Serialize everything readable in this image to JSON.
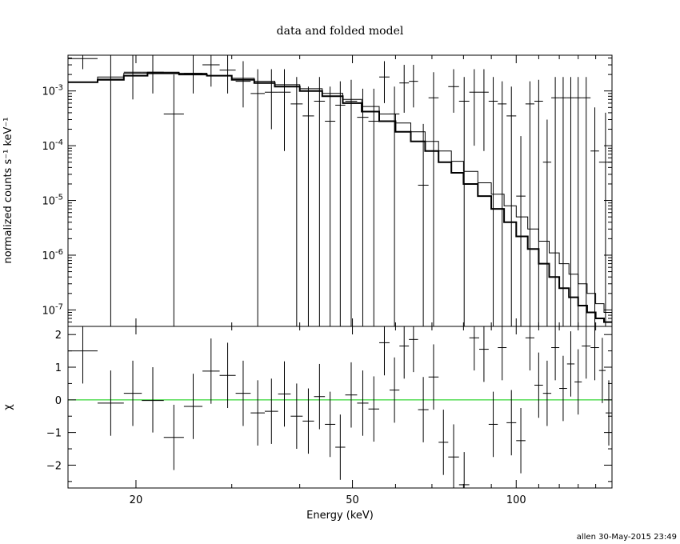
{
  "chart_data": [
    {
      "type": "line",
      "panel": "top",
      "title": "data and folded model",
      "xlabel": "",
      "ylabel": "normalized counts s⁻¹ keV⁻¹",
      "xscale": "log",
      "yscale": "log",
      "xlim": [
        15,
        150
      ],
      "ylim": [
        5e-08,
        0.0045
      ],
      "yticks": [
        {
          "value": 1e-07,
          "base": "10",
          "exp": "-7"
        },
        {
          "value": 1e-06,
          "base": "10",
          "exp": "-6"
        },
        {
          "value": 1e-05,
          "base": "10",
          "exp": "-5"
        },
        {
          "value": 0.0001,
          "base": "10",
          "exp": "-4"
        },
        {
          "value": 0.001,
          "base": "10",
          "exp": "-3"
        }
      ],
      "data_points": [
        {
          "xlo": 15.0,
          "xhi": 17.0,
          "y": 0.0039,
          "ylo": 0.0025,
          "yhi": 0.0045
        },
        {
          "xlo": 17.0,
          "xhi": 19.0,
          "y": 0.00165,
          "ylo": 5e-08,
          "yhi": 0.0045
        },
        {
          "xlo": 19.0,
          "xhi": 20.5,
          "y": 0.0022,
          "ylo": 0.0007,
          "yhi": 0.0045
        },
        {
          "xlo": 20.5,
          "xhi": 22.5,
          "y": 0.0022,
          "ylo": 0.0009,
          "yhi": 0.0045
        },
        {
          "xlo": 22.5,
          "xhi": 24.5,
          "y": 0.00038,
          "ylo": 5e-08,
          "yhi": 0.002
        },
        {
          "xlo": 24.5,
          "xhi": 26.5,
          "y": 0.0021,
          "ylo": 0.0009,
          "yhi": 0.0045
        },
        {
          "xlo": 26.5,
          "xhi": 28.5,
          "y": 0.003,
          "ylo": 0.0012,
          "yhi": 0.0045
        },
        {
          "xlo": 28.5,
          "xhi": 30.5,
          "y": 0.0024,
          "ylo": 0.0009,
          "yhi": 0.0045
        },
        {
          "xlo": 30.5,
          "xhi": 32.5,
          "y": 0.0015,
          "ylo": 0.0005,
          "yhi": 0.0035
        },
        {
          "xlo": 32.5,
          "xhi": 34.5,
          "y": 0.0009,
          "ylo": 5e-08,
          "yhi": 0.0025
        },
        {
          "xlo": 34.5,
          "xhi": 36.5,
          "y": 0.00095,
          "ylo": 0.0002,
          "yhi": 0.0025
        },
        {
          "xlo": 36.5,
          "xhi": 38.5,
          "y": 0.00095,
          "ylo": 8e-05,
          "yhi": 0.0025
        },
        {
          "xlo": 38.5,
          "xhi": 40.5,
          "y": 0.00058,
          "ylo": 5e-08,
          "yhi": 0.0018
        },
        {
          "xlo": 40.5,
          "xhi": 42.5,
          "y": 0.00035,
          "ylo": 5e-08,
          "yhi": 0.0012
        },
        {
          "xlo": 42.5,
          "xhi": 44.5,
          "y": 0.00065,
          "ylo": 5e-08,
          "yhi": 0.0018
        },
        {
          "xlo": 44.5,
          "xhi": 46.5,
          "y": 0.00028,
          "ylo": 5e-08,
          "yhi": 0.0012
        },
        {
          "xlo": 46.5,
          "xhi": 48.5,
          "y": 0.00055,
          "ylo": 5e-08,
          "yhi": 0.0015
        },
        {
          "xlo": 48.5,
          "xhi": 51.0,
          "y": 0.00065,
          "ylo": 5e-08,
          "yhi": 0.0016
        },
        {
          "xlo": 51.0,
          "xhi": 53.5,
          "y": 0.00033,
          "ylo": 5e-08,
          "yhi": 0.0011
        },
        {
          "xlo": 53.5,
          "xhi": 56.0,
          "y": 0.00028,
          "ylo": 5e-08,
          "yhi": 0.0011
        },
        {
          "xlo": 56.0,
          "xhi": 58.5,
          "y": 0.0018,
          "ylo": 0.0006,
          "yhi": 0.0035
        },
        {
          "xlo": 58.5,
          "xhi": 61.0,
          "y": 0.00038,
          "ylo": 5e-08,
          "yhi": 0.0012
        },
        {
          "xlo": 61.0,
          "xhi": 63.5,
          "y": 0.0014,
          "ylo": 0.0004,
          "yhi": 0.003
        },
        {
          "xlo": 63.5,
          "xhi": 66.0,
          "y": 0.0015,
          "ylo": 0.0005,
          "yhi": 0.003
        },
        {
          "xlo": 66.0,
          "xhi": 69.0,
          "y": 1.9e-05,
          "ylo": 5e-08,
          "yhi": 0.00025
        },
        {
          "xlo": 69.0,
          "xhi": 72.0,
          "y": 0.00075,
          "ylo": 5e-08,
          "yhi": 0.0022
        },
        {
          "xlo": 75.0,
          "xhi": 78.5,
          "y": 0.0012,
          "ylo": 0.0004,
          "yhi": 0.0025
        },
        {
          "xlo": 78.5,
          "xhi": 82.0,
          "y": 0.00065,
          "ylo": 5e-08,
          "yhi": 0.0018
        },
        {
          "xlo": 82.0,
          "xhi": 85.5,
          "y": 0.00095,
          "ylo": 0.0001,
          "yhi": 0.0025
        },
        {
          "xlo": 85.5,
          "xhi": 89.0,
          "y": 0.00095,
          "ylo": 8e-05,
          "yhi": 0.0025
        },
        {
          "xlo": 89.0,
          "xhi": 92.5,
          "y": 0.00065,
          "ylo": 5e-08,
          "yhi": 0.0018
        },
        {
          "xlo": 92.5,
          "xhi": 96.0,
          "y": 0.00058,
          "ylo": 5e-08,
          "yhi": 0.0015
        },
        {
          "xlo": 96.0,
          "xhi": 100.0,
          "y": 0.00035,
          "ylo": 5e-08,
          "yhi": 0.0012
        },
        {
          "xlo": 100.0,
          "xhi": 104.0,
          "y": 1.2e-05,
          "ylo": 5e-08,
          "yhi": 0.00015
        },
        {
          "xlo": 104.0,
          "xhi": 108.0,
          "y": 0.00058,
          "ylo": 5e-08,
          "yhi": 0.0015
        },
        {
          "xlo": 108.0,
          "xhi": 112.0,
          "y": 0.00065,
          "ylo": 5e-08,
          "yhi": 0.0016
        },
        {
          "xlo": 112.0,
          "xhi": 116.0,
          "y": 5e-05,
          "ylo": 5e-08,
          "yhi": 0.0003
        },
        {
          "xlo": 116.0,
          "xhi": 120.0,
          "y": 0.00075,
          "ylo": 5e-08,
          "yhi": 0.0018
        },
        {
          "xlo": 120.0,
          "xhi": 124.0,
          "y": 0.00075,
          "ylo": 5e-08,
          "yhi": 0.0018
        },
        {
          "xlo": 124.0,
          "xhi": 128.0,
          "y": 0.00075,
          "ylo": 5e-08,
          "yhi": 0.0018
        },
        {
          "xlo": 128.0,
          "xhi": 132.0,
          "y": 0.00075,
          "ylo": 5e-08,
          "yhi": 0.0018
        },
        {
          "xlo": 132.0,
          "xhi": 137.0,
          "y": 0.00075,
          "ylo": 5e-08,
          "yhi": 0.0018
        },
        {
          "xlo": 137.0,
          "xhi": 142.0,
          "y": 8e-05,
          "ylo": 5e-08,
          "yhi": 0.0005
        },
        {
          "xlo": 142.0,
          "xhi": 150.0,
          "y": 5e-05,
          "ylo": 5e-08,
          "yhi": 0.0004
        }
      ],
      "model_thick": [
        [
          15.0,
          0.00145
        ],
        [
          17.0,
          0.0016
        ],
        [
          19.0,
          0.0019
        ],
        [
          21.0,
          0.0021
        ],
        [
          24.0,
          0.002
        ],
        [
          27.0,
          0.0019
        ],
        [
          30.0,
          0.0016
        ],
        [
          33.0,
          0.0014
        ],
        [
          36.0,
          0.0012
        ],
        [
          40.0,
          0.001
        ],
        [
          44.0,
          0.0008
        ],
        [
          48.0,
          0.0006
        ],
        [
          52.0,
          0.00042
        ],
        [
          56.0,
          0.00028
        ],
        [
          60.0,
          0.00018
        ],
        [
          64.0,
          0.00012
        ],
        [
          68.0,
          8e-05
        ],
        [
          72.0,
          5e-05
        ],
        [
          76.0,
          3.2e-05
        ],
        [
          80.0,
          2e-05
        ],
        [
          85.0,
          1.2e-05
        ],
        [
          90.0,
          7e-06
        ],
        [
          95.0,
          4e-06
        ],
        [
          100.0,
          2.2e-06
        ],
        [
          105.0,
          1.3e-06
        ],
        [
          110.0,
          7e-07
        ],
        [
          115.0,
          4e-07
        ],
        [
          120.0,
          2.5e-07
        ],
        [
          125.0,
          1.7e-07
        ],
        [
          130.0,
          1.2e-07
        ],
        [
          135.0,
          9e-08
        ],
        [
          140.0,
          7e-08
        ],
        [
          145.0,
          6e-08
        ],
        [
          150.0,
          5e-08
        ]
      ],
      "model_thin": [
        [
          15.0,
          0.00145
        ],
        [
          17.0,
          0.0018
        ],
        [
          19.0,
          0.0021
        ],
        [
          21.0,
          0.0022
        ],
        [
          24.0,
          0.0021
        ],
        [
          27.0,
          0.0019
        ],
        [
          30.0,
          0.0017
        ],
        [
          33.0,
          0.0015
        ],
        [
          36.0,
          0.0013
        ],
        [
          40.0,
          0.0011
        ],
        [
          44.0,
          0.0009
        ],
        [
          48.0,
          0.0007
        ],
        [
          52.0,
          0.00052
        ],
        [
          56.0,
          0.00038
        ],
        [
          60.0,
          0.00026
        ],
        [
          64.0,
          0.00018
        ],
        [
          68.0,
          0.00012
        ],
        [
          72.0,
          8e-05
        ],
        [
          76.0,
          5.2e-05
        ],
        [
          80.0,
          3.4e-05
        ],
        [
          85.0,
          2.1e-05
        ],
        [
          90.0,
          1.3e-05
        ],
        [
          95.0,
          8e-06
        ],
        [
          100.0,
          5e-06
        ],
        [
          105.0,
          3e-06
        ],
        [
          110.0,
          1.8e-06
        ],
        [
          115.0,
          1.1e-06
        ],
        [
          120.0,
          7e-07
        ],
        [
          125.0,
          4.5e-07
        ],
        [
          130.0,
          3e-07
        ],
        [
          135.0,
          2e-07
        ],
        [
          140.0,
          1.3e-07
        ],
        [
          145.0,
          9e-08
        ],
        [
          150.0,
          6e-08
        ]
      ]
    },
    {
      "type": "scatter",
      "panel": "bottom",
      "xlabel": "Energy (keV)",
      "ylabel": "χ",
      "xscale": "log",
      "xlim": [
        15,
        150
      ],
      "ylim": [
        -2.7,
        2.25
      ],
      "xticks": [
        20,
        50,
        100
      ],
      "xtick_labels": [
        "20",
        "50",
        "100"
      ],
      "yticks": [
        -2,
        -1,
        0,
        1,
        2
      ],
      "ytick_labels": [
        "−2",
        "−1",
        "0",
        "1",
        "2"
      ],
      "zero_line_color": "#00cc00",
      "points": [
        {
          "xlo": 15.0,
          "xhi": 17.0,
          "y": 1.5,
          "ylo": 0.5,
          "yhi": 2.5
        },
        {
          "xlo": 17.0,
          "xhi": 19.0,
          "y": -0.1,
          "ylo": -1.1,
          "yhi": 0.9
        },
        {
          "xlo": 19.0,
          "xhi": 20.5,
          "y": 0.2,
          "ylo": -0.8,
          "yhi": 1.2
        },
        {
          "xlo": 20.5,
          "xhi": 22.5,
          "y": -0.02,
          "ylo": -1.0,
          "yhi": 1.0
        },
        {
          "xlo": 22.5,
          "xhi": 24.5,
          "y": -1.15,
          "ylo": -2.15,
          "yhi": -0.15
        },
        {
          "xlo": 24.5,
          "xhi": 26.5,
          "y": -0.2,
          "ylo": -1.2,
          "yhi": 0.8
        },
        {
          "xlo": 26.5,
          "xhi": 28.5,
          "y": 0.88,
          "ylo": -0.12,
          "yhi": 1.88
        },
        {
          "xlo": 28.5,
          "xhi": 30.5,
          "y": 0.75,
          "ylo": -0.25,
          "yhi": 1.75
        },
        {
          "xlo": 30.5,
          "xhi": 32.5,
          "y": 0.2,
          "ylo": -0.8,
          "yhi": 1.2
        },
        {
          "xlo": 32.5,
          "xhi": 34.5,
          "y": -0.4,
          "ylo": -1.4,
          "yhi": 0.6
        },
        {
          "xlo": 34.5,
          "xhi": 36.5,
          "y": -0.35,
          "ylo": -1.35,
          "yhi": 0.65
        },
        {
          "xlo": 36.5,
          "xhi": 38.5,
          "y": 0.18,
          "ylo": -0.82,
          "yhi": 1.18
        },
        {
          "xlo": 38.5,
          "xhi": 40.5,
          "y": -0.5,
          "ylo": -1.5,
          "yhi": 0.5
        },
        {
          "xlo": 40.5,
          "xhi": 42.5,
          "y": -0.65,
          "ylo": -1.65,
          "yhi": 0.35
        },
        {
          "xlo": 42.5,
          "xhi": 44.5,
          "y": 0.1,
          "ylo": -0.9,
          "yhi": 1.1
        },
        {
          "xlo": 44.5,
          "xhi": 46.5,
          "y": -0.75,
          "ylo": -1.75,
          "yhi": 0.25
        },
        {
          "xlo": 46.5,
          "xhi": 48.5,
          "y": -1.45,
          "ylo": -2.45,
          "yhi": -0.45
        },
        {
          "xlo": 48.5,
          "xhi": 51.0,
          "y": 0.15,
          "ylo": -0.85,
          "yhi": 1.15
        },
        {
          "xlo": 51.0,
          "xhi": 53.5,
          "y": -0.1,
          "ylo": -1.1,
          "yhi": 0.9
        },
        {
          "xlo": 53.5,
          "xhi": 56.0,
          "y": -0.28,
          "ylo": -1.28,
          "yhi": 0.72
        },
        {
          "xlo": 56.0,
          "xhi": 58.5,
          "y": 1.75,
          "ylo": 0.75,
          "yhi": 2.25
        },
        {
          "xlo": 58.5,
          "xhi": 61.0,
          "y": 0.3,
          "ylo": -0.7,
          "yhi": 1.3
        },
        {
          "xlo": 61.0,
          "xhi": 63.5,
          "y": 1.65,
          "ylo": 0.65,
          "yhi": 2.25
        },
        {
          "xlo": 63.5,
          "xhi": 66.0,
          "y": 1.85,
          "ylo": 0.85,
          "yhi": 2.25
        },
        {
          "xlo": 66.0,
          "xhi": 69.0,
          "y": -0.3,
          "ylo": -1.3,
          "yhi": 0.7
        },
        {
          "xlo": 69.0,
          "xhi": 72.0,
          "y": 0.7,
          "ylo": -0.3,
          "yhi": 1.7
        },
        {
          "xlo": 72.0,
          "xhi": 75.0,
          "y": -1.3,
          "ylo": -2.3,
          "yhi": -0.3
        },
        {
          "xlo": 75.0,
          "xhi": 78.5,
          "y": -1.75,
          "ylo": -2.7,
          "yhi": -0.75
        },
        {
          "xlo": 78.5,
          "xhi": 82.0,
          "y": -2.6,
          "ylo": -2.7,
          "yhi": -1.6
        },
        {
          "xlo": 82.0,
          "xhi": 85.5,
          "y": 1.9,
          "ylo": 0.9,
          "yhi": 2.25
        },
        {
          "xlo": 85.5,
          "xhi": 89.0,
          "y": 1.55,
          "ylo": 0.55,
          "yhi": 2.25
        },
        {
          "xlo": 89.0,
          "xhi": 92.5,
          "y": -0.75,
          "ylo": -1.75,
          "yhi": 0.25
        },
        {
          "xlo": 92.5,
          "xhi": 96.0,
          "y": 1.6,
          "ylo": 0.6,
          "yhi": 2.25
        },
        {
          "xlo": 96.0,
          "xhi": 100.0,
          "y": -0.7,
          "ylo": -1.7,
          "yhi": 0.3
        },
        {
          "xlo": 100.0,
          "xhi": 104.0,
          "y": -1.25,
          "ylo": -2.25,
          "yhi": -0.25
        },
        {
          "xlo": 104.0,
          "xhi": 108.0,
          "y": 1.9,
          "ylo": 0.9,
          "yhi": 2.25
        },
        {
          "xlo": 108.0,
          "xhi": 112.0,
          "y": 0.45,
          "ylo": -0.55,
          "yhi": 1.45
        },
        {
          "xlo": 112.0,
          "xhi": 116.0,
          "y": 0.2,
          "ylo": -0.8,
          "yhi": 1.2
        },
        {
          "xlo": 116.0,
          "xhi": 120.0,
          "y": 1.6,
          "ylo": 0.6,
          "yhi": 2.25
        },
        {
          "xlo": 120.0,
          "xhi": 124.0,
          "y": 0.35,
          "ylo": -0.65,
          "yhi": 1.35
        },
        {
          "xlo": 124.0,
          "xhi": 128.0,
          "y": 1.1,
          "ylo": 0.1,
          "yhi": 2.1
        },
        {
          "xlo": 128.0,
          "xhi": 132.0,
          "y": 0.55,
          "ylo": -0.45,
          "yhi": 1.55
        },
        {
          "xlo": 132.0,
          "xhi": 137.0,
          "y": 1.65,
          "ylo": 0.65,
          "yhi": 2.25
        },
        {
          "xlo": 137.0,
          "xhi": 142.0,
          "y": 1.6,
          "ylo": 0.6,
          "yhi": 2.25
        },
        {
          "xlo": 142.0,
          "xhi": 146.0,
          "y": 0.9,
          "ylo": -0.1,
          "yhi": 1.9
        },
        {
          "xlo": 146.0,
          "xhi": 150.0,
          "y": -0.4,
          "ylo": -1.4,
          "yhi": 0.6
        }
      ]
    }
  ],
  "footer": {
    "stamp": "allen 30-May-2015 23:49"
  }
}
